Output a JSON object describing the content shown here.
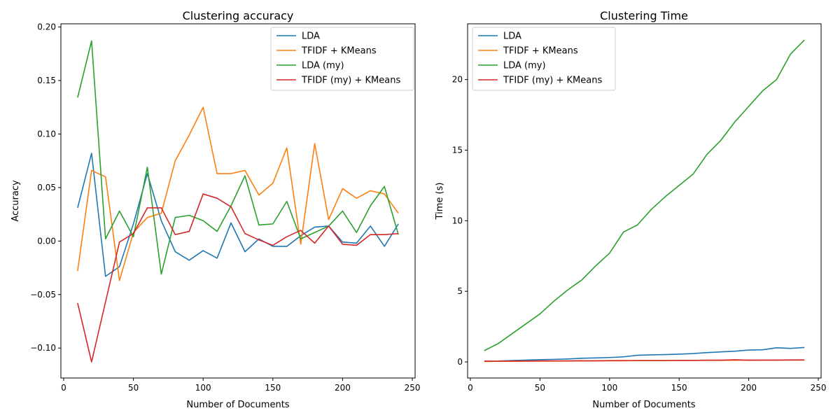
{
  "chart_data": [
    {
      "type": "line",
      "title": "Clustering accuracy",
      "xlabel": "Number of Documents",
      "ylabel": "Accuracy",
      "xlim": [
        -2,
        252
      ],
      "ylim": [
        -0.128,
        0.203
      ],
      "xticks": [
        0,
        50,
        100,
        150,
        200,
        250
      ],
      "xtick_labels": [
        "0",
        "50",
        "100",
        "150",
        "200",
        "250"
      ],
      "yticks": [
        -0.1,
        -0.05,
        0.0,
        0.05,
        0.1,
        0.15,
        0.2
      ],
      "ytick_labels": [
        "−0.10",
        "−0.05",
        "0.00",
        "0.05",
        "0.10",
        "0.15",
        "0.20"
      ],
      "grid": false,
      "legend_position": "top-right",
      "x": [
        10,
        20,
        30,
        40,
        50,
        60,
        70,
        80,
        90,
        100,
        110,
        120,
        130,
        140,
        150,
        160,
        170,
        180,
        190,
        200,
        210,
        220,
        230,
        240
      ],
      "series": [
        {
          "name": "LDA",
          "color": "#1f77b4",
          "values": [
            0.031,
            0.082,
            -0.033,
            -0.024,
            0.016,
            0.063,
            0.019,
            -0.01,
            -0.018,
            -0.009,
            -0.016,
            0.017,
            -0.01,
            0.002,
            -0.005,
            -0.005,
            0.005,
            0.013,
            0.014,
            -0.001,
            -0.002,
            0.014,
            -0.005,
            0.016
          ]
        },
        {
          "name": "TFIDF + KMeans",
          "color": "#ff7f0e",
          "values": [
            -0.028,
            0.066,
            0.06,
            -0.037,
            0.008,
            0.022,
            0.026,
            0.075,
            0.099,
            0.125,
            0.063,
            0.063,
            0.066,
            0.043,
            0.054,
            0.087,
            -0.003,
            0.091,
            0.02,
            0.049,
            0.04,
            0.047,
            0.044,
            0.026
          ]
        },
        {
          "name": "LDA (my)",
          "color": "#2ca02c",
          "values": [
            0.134,
            0.187,
            0.002,
            0.028,
            0.004,
            0.069,
            -0.031,
            0.022,
            0.024,
            0.019,
            0.009,
            0.033,
            0.061,
            0.015,
            0.016,
            0.037,
            0.002,
            0.008,
            0.014,
            0.028,
            0.008,
            0.033,
            0.051,
            0.006
          ]
        },
        {
          "name": "TFIDF (my) + KMeans",
          "color": "#d62728",
          "values": [
            -0.058,
            -0.113,
            -0.057,
            -0.001,
            0.007,
            0.031,
            0.031,
            0.006,
            0.009,
            0.044,
            0.04,
            0.032,
            0.007,
            0.001,
            -0.004,
            0.004,
            0.01,
            -0.002,
            0.014,
            -0.003,
            -0.004,
            0.006,
            0.006,
            0.007
          ]
        }
      ]
    },
    {
      "type": "line",
      "title": "Clustering Time",
      "xlabel": "Number of Documents",
      "ylabel": "Time (s)",
      "xlim": [
        -2,
        252
      ],
      "ylim": [
        -1.14,
        23.95
      ],
      "xticks": [
        0,
        50,
        100,
        150,
        200,
        250
      ],
      "xtick_labels": [
        "0",
        "50",
        "100",
        "150",
        "200",
        "250"
      ],
      "yticks": [
        0,
        5,
        10,
        15,
        20
      ],
      "ytick_labels": [
        "0",
        "5",
        "10",
        "15",
        "20"
      ],
      "grid": false,
      "legend_position": "top-left",
      "x": [
        10,
        20,
        30,
        40,
        50,
        60,
        70,
        80,
        90,
        100,
        110,
        120,
        130,
        140,
        150,
        160,
        170,
        180,
        190,
        200,
        210,
        220,
        230,
        240
      ],
      "series": [
        {
          "name": "LDA",
          "color": "#1f77b4",
          "values": [
            0.05,
            0.06,
            0.1,
            0.13,
            0.16,
            0.18,
            0.21,
            0.26,
            0.28,
            0.31,
            0.36,
            0.47,
            0.5,
            0.52,
            0.55,
            0.59,
            0.66,
            0.71,
            0.76,
            0.84,
            0.86,
            1.0,
            0.96,
            1.02
          ]
        },
        {
          "name": "TFIDF + KMeans",
          "color": "#ff7f0e",
          "values": [
            0.03,
            0.04,
            0.04,
            0.05,
            0.05,
            0.06,
            0.06,
            0.07,
            0.07,
            0.08,
            0.08,
            0.09,
            0.09,
            0.09,
            0.1,
            0.1,
            0.11,
            0.11,
            0.12,
            0.12,
            0.12,
            0.13,
            0.13,
            0.13
          ]
        },
        {
          "name": "LDA (my)",
          "color": "#2ca02c",
          "values": [
            0.8,
            1.3,
            2.0,
            2.7,
            3.4,
            4.3,
            5.1,
            5.8,
            6.8,
            7.7,
            9.2,
            9.7,
            10.8,
            11.7,
            12.5,
            13.3,
            14.7,
            15.7,
            17.0,
            18.1,
            19.2,
            20.0,
            21.8,
            22.8
          ]
        },
        {
          "name": "TFIDF (my) + KMeans",
          "color": "#d62728",
          "values": [
            0.06,
            0.05,
            0.06,
            0.06,
            0.07,
            0.07,
            0.07,
            0.08,
            0.08,
            0.09,
            0.1,
            0.1,
            0.1,
            0.1,
            0.11,
            0.11,
            0.12,
            0.12,
            0.15,
            0.12,
            0.13,
            0.13,
            0.14,
            0.14
          ]
        }
      ]
    }
  ]
}
